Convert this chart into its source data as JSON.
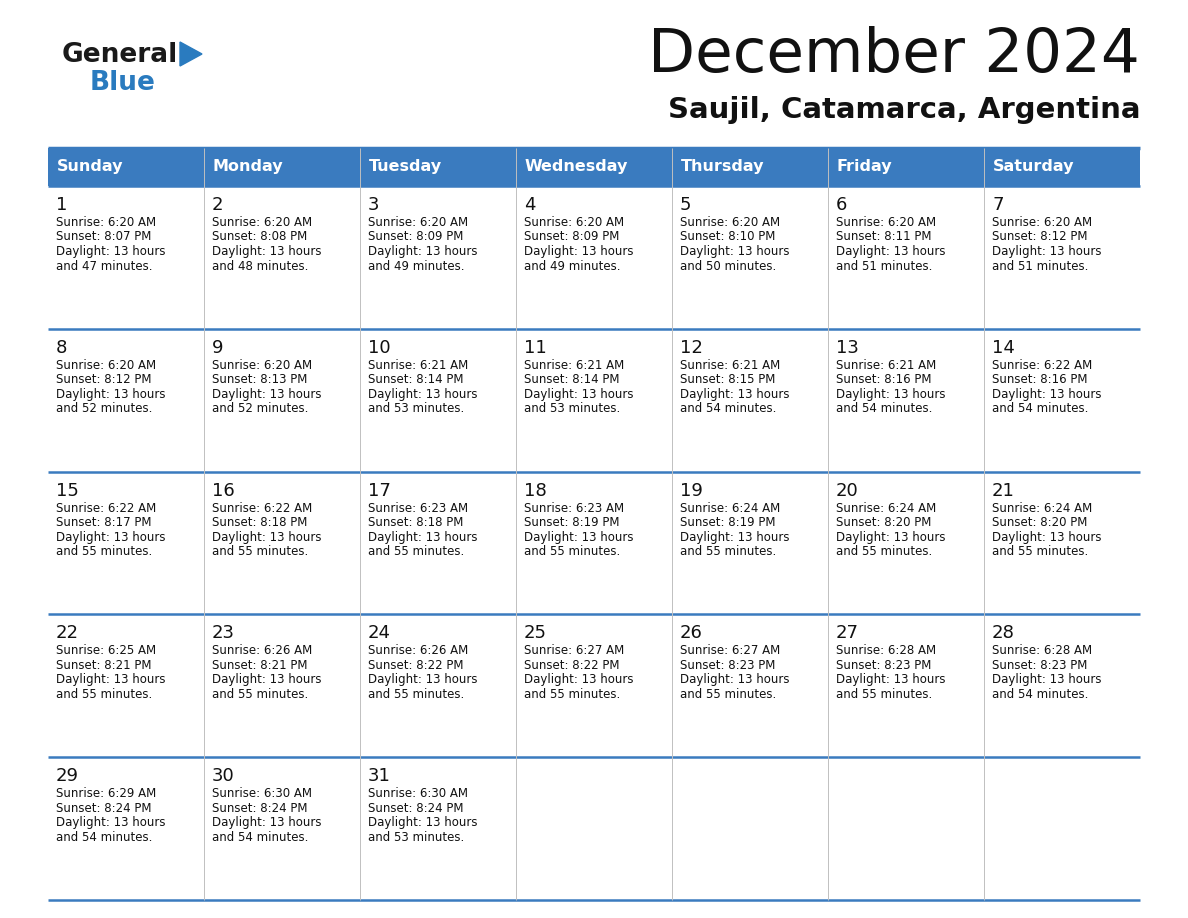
{
  "title": "December 2024",
  "subtitle": "Saujil, Catamarca, Argentina",
  "header_color": "#3a7bbf",
  "header_text_color": "#ffffff",
  "cell_bg_color": "#ffffff",
  "border_color": "#3a7bbf",
  "days_of_week": [
    "Sunday",
    "Monday",
    "Tuesday",
    "Wednesday",
    "Thursday",
    "Friday",
    "Saturday"
  ],
  "weeks": [
    [
      {
        "day": 1,
        "sunrise": "6:20 AM",
        "sunset": "8:07 PM",
        "daylight_hours": 13,
        "daylight_minutes": 47
      },
      {
        "day": 2,
        "sunrise": "6:20 AM",
        "sunset": "8:08 PM",
        "daylight_hours": 13,
        "daylight_minutes": 48
      },
      {
        "day": 3,
        "sunrise": "6:20 AM",
        "sunset": "8:09 PM",
        "daylight_hours": 13,
        "daylight_minutes": 49
      },
      {
        "day": 4,
        "sunrise": "6:20 AM",
        "sunset": "8:09 PM",
        "daylight_hours": 13,
        "daylight_minutes": 49
      },
      {
        "day": 5,
        "sunrise": "6:20 AM",
        "sunset": "8:10 PM",
        "daylight_hours": 13,
        "daylight_minutes": 50
      },
      {
        "day": 6,
        "sunrise": "6:20 AM",
        "sunset": "8:11 PM",
        "daylight_hours": 13,
        "daylight_minutes": 51
      },
      {
        "day": 7,
        "sunrise": "6:20 AM",
        "sunset": "8:12 PM",
        "daylight_hours": 13,
        "daylight_minutes": 51
      }
    ],
    [
      {
        "day": 8,
        "sunrise": "6:20 AM",
        "sunset": "8:12 PM",
        "daylight_hours": 13,
        "daylight_minutes": 52
      },
      {
        "day": 9,
        "sunrise": "6:20 AM",
        "sunset": "8:13 PM",
        "daylight_hours": 13,
        "daylight_minutes": 52
      },
      {
        "day": 10,
        "sunrise": "6:21 AM",
        "sunset": "8:14 PM",
        "daylight_hours": 13,
        "daylight_minutes": 53
      },
      {
        "day": 11,
        "sunrise": "6:21 AM",
        "sunset": "8:14 PM",
        "daylight_hours": 13,
        "daylight_minutes": 53
      },
      {
        "day": 12,
        "sunrise": "6:21 AM",
        "sunset": "8:15 PM",
        "daylight_hours": 13,
        "daylight_minutes": 54
      },
      {
        "day": 13,
        "sunrise": "6:21 AM",
        "sunset": "8:16 PM",
        "daylight_hours": 13,
        "daylight_minutes": 54
      },
      {
        "day": 14,
        "sunrise": "6:22 AM",
        "sunset": "8:16 PM",
        "daylight_hours": 13,
        "daylight_minutes": 54
      }
    ],
    [
      {
        "day": 15,
        "sunrise": "6:22 AM",
        "sunset": "8:17 PM",
        "daylight_hours": 13,
        "daylight_minutes": 55
      },
      {
        "day": 16,
        "sunrise": "6:22 AM",
        "sunset": "8:18 PM",
        "daylight_hours": 13,
        "daylight_minutes": 55
      },
      {
        "day": 17,
        "sunrise": "6:23 AM",
        "sunset": "8:18 PM",
        "daylight_hours": 13,
        "daylight_minutes": 55
      },
      {
        "day": 18,
        "sunrise": "6:23 AM",
        "sunset": "8:19 PM",
        "daylight_hours": 13,
        "daylight_minutes": 55
      },
      {
        "day": 19,
        "sunrise": "6:24 AM",
        "sunset": "8:19 PM",
        "daylight_hours": 13,
        "daylight_minutes": 55
      },
      {
        "day": 20,
        "sunrise": "6:24 AM",
        "sunset": "8:20 PM",
        "daylight_hours": 13,
        "daylight_minutes": 55
      },
      {
        "day": 21,
        "sunrise": "6:24 AM",
        "sunset": "8:20 PM",
        "daylight_hours": 13,
        "daylight_minutes": 55
      }
    ],
    [
      {
        "day": 22,
        "sunrise": "6:25 AM",
        "sunset": "8:21 PM",
        "daylight_hours": 13,
        "daylight_minutes": 55
      },
      {
        "day": 23,
        "sunrise": "6:26 AM",
        "sunset": "8:21 PM",
        "daylight_hours": 13,
        "daylight_minutes": 55
      },
      {
        "day": 24,
        "sunrise": "6:26 AM",
        "sunset": "8:22 PM",
        "daylight_hours": 13,
        "daylight_minutes": 55
      },
      {
        "day": 25,
        "sunrise": "6:27 AM",
        "sunset": "8:22 PM",
        "daylight_hours": 13,
        "daylight_minutes": 55
      },
      {
        "day": 26,
        "sunrise": "6:27 AM",
        "sunset": "8:23 PM",
        "daylight_hours": 13,
        "daylight_minutes": 55
      },
      {
        "day": 27,
        "sunrise": "6:28 AM",
        "sunset": "8:23 PM",
        "daylight_hours": 13,
        "daylight_minutes": 55
      },
      {
        "day": 28,
        "sunrise": "6:28 AM",
        "sunset": "8:23 PM",
        "daylight_hours": 13,
        "daylight_minutes": 54
      }
    ],
    [
      {
        "day": 29,
        "sunrise": "6:29 AM",
        "sunset": "8:24 PM",
        "daylight_hours": 13,
        "daylight_minutes": 54
      },
      {
        "day": 30,
        "sunrise": "6:30 AM",
        "sunset": "8:24 PM",
        "daylight_hours": 13,
        "daylight_minutes": 54
      },
      {
        "day": 31,
        "sunrise": "6:30 AM",
        "sunset": "8:24 PM",
        "daylight_hours": 13,
        "daylight_minutes": 53
      },
      null,
      null,
      null,
      null
    ]
  ],
  "logo_general_color": "#1a1a1a",
  "logo_blue_color": "#2a7bbf",
  "logo_triangle_color": "#2a7bbf"
}
